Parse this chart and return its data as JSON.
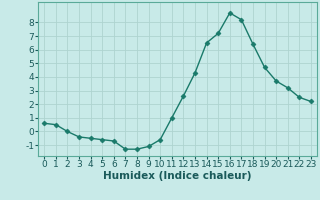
{
  "x": [
    0,
    1,
    2,
    3,
    4,
    5,
    6,
    7,
    8,
    9,
    10,
    11,
    12,
    13,
    14,
    15,
    16,
    17,
    18,
    19,
    20,
    21,
    22,
    23
  ],
  "y": [
    0.6,
    0.5,
    0.0,
    -0.4,
    -0.5,
    -0.6,
    -0.7,
    -1.3,
    -1.3,
    -1.1,
    -0.6,
    1.0,
    2.6,
    4.3,
    6.5,
    7.2,
    8.7,
    8.2,
    6.4,
    4.7,
    3.7,
    3.2,
    2.5,
    2.2
  ],
  "line_color": "#1a7a6a",
  "marker": "D",
  "marker_size": 2.5,
  "linewidth": 1.0,
  "background_color": "#c8eae8",
  "grid_color": "#aed4d0",
  "xlabel": "Humidex (Indice chaleur)",
  "xlabel_fontsize": 7.5,
  "tick_fontsize": 6.5,
  "xlim": [
    -0.5,
    23.5
  ],
  "ylim": [
    -1.8,
    9.5
  ],
  "yticks": [
    -1,
    0,
    1,
    2,
    3,
    4,
    5,
    6,
    7,
    8
  ],
  "xticks": [
    0,
    1,
    2,
    3,
    4,
    5,
    6,
    7,
    8,
    9,
    10,
    11,
    12,
    13,
    14,
    15,
    16,
    17,
    18,
    19,
    20,
    21,
    22,
    23
  ]
}
